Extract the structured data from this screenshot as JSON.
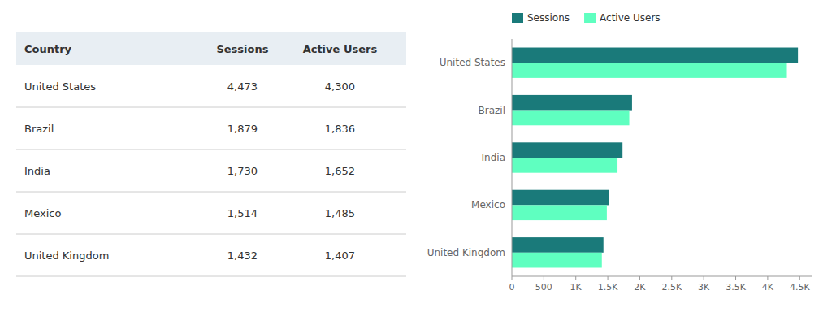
{
  "chart_data": [
    {
      "type": "table",
      "columns": [
        "Country",
        "Sessions",
        "Active Users"
      ],
      "categories": [
        "United States",
        "Brazil",
        "India",
        "Mexico",
        "United Kingdom"
      ],
      "series": [
        {
          "name": "Sessions",
          "values": [
            4473,
            1879,
            1730,
            1514,
            1432
          ],
          "value_labels": [
            "4,473",
            "1,879",
            "1,730",
            "1,514",
            "1,432"
          ]
        },
        {
          "name": "Active Users",
          "values": [
            4300,
            1836,
            1652,
            1485,
            1407
          ],
          "value_labels": [
            "4,300",
            "1,836",
            "1,652",
            "1,485",
            "1,407"
          ]
        }
      ]
    },
    {
      "type": "bar",
      "orientation": "horizontal",
      "categories": [
        "United States",
        "Brazil",
        "India",
        "Mexico",
        "United Kingdom"
      ],
      "series": [
        {
          "name": "Sessions",
          "color": "#1a7a7a",
          "values": [
            4473,
            1879,
            1730,
            1514,
            1432
          ]
        },
        {
          "name": "Active Users",
          "color": "#5fffc0",
          "values": [
            4300,
            1836,
            1652,
            1485,
            1407
          ]
        }
      ],
      "xlim": [
        0,
        4700
      ],
      "xticks": [
        0,
        500,
        {
          "value": 1000,
          "label": "1K"
        },
        {
          "value": 1500,
          "label": "1.5K"
        },
        {
          "value": 2000,
          "label": "2K"
        },
        {
          "value": 2500,
          "label": "2.5K"
        },
        {
          "value": 3000,
          "label": "3K"
        },
        {
          "value": 3500,
          "label": "3.5K"
        },
        {
          "value": 4000,
          "label": "4K"
        },
        {
          "value": 4500,
          "label": "4.5K"
        }
      ],
      "grid": false,
      "legend": "top"
    }
  ]
}
